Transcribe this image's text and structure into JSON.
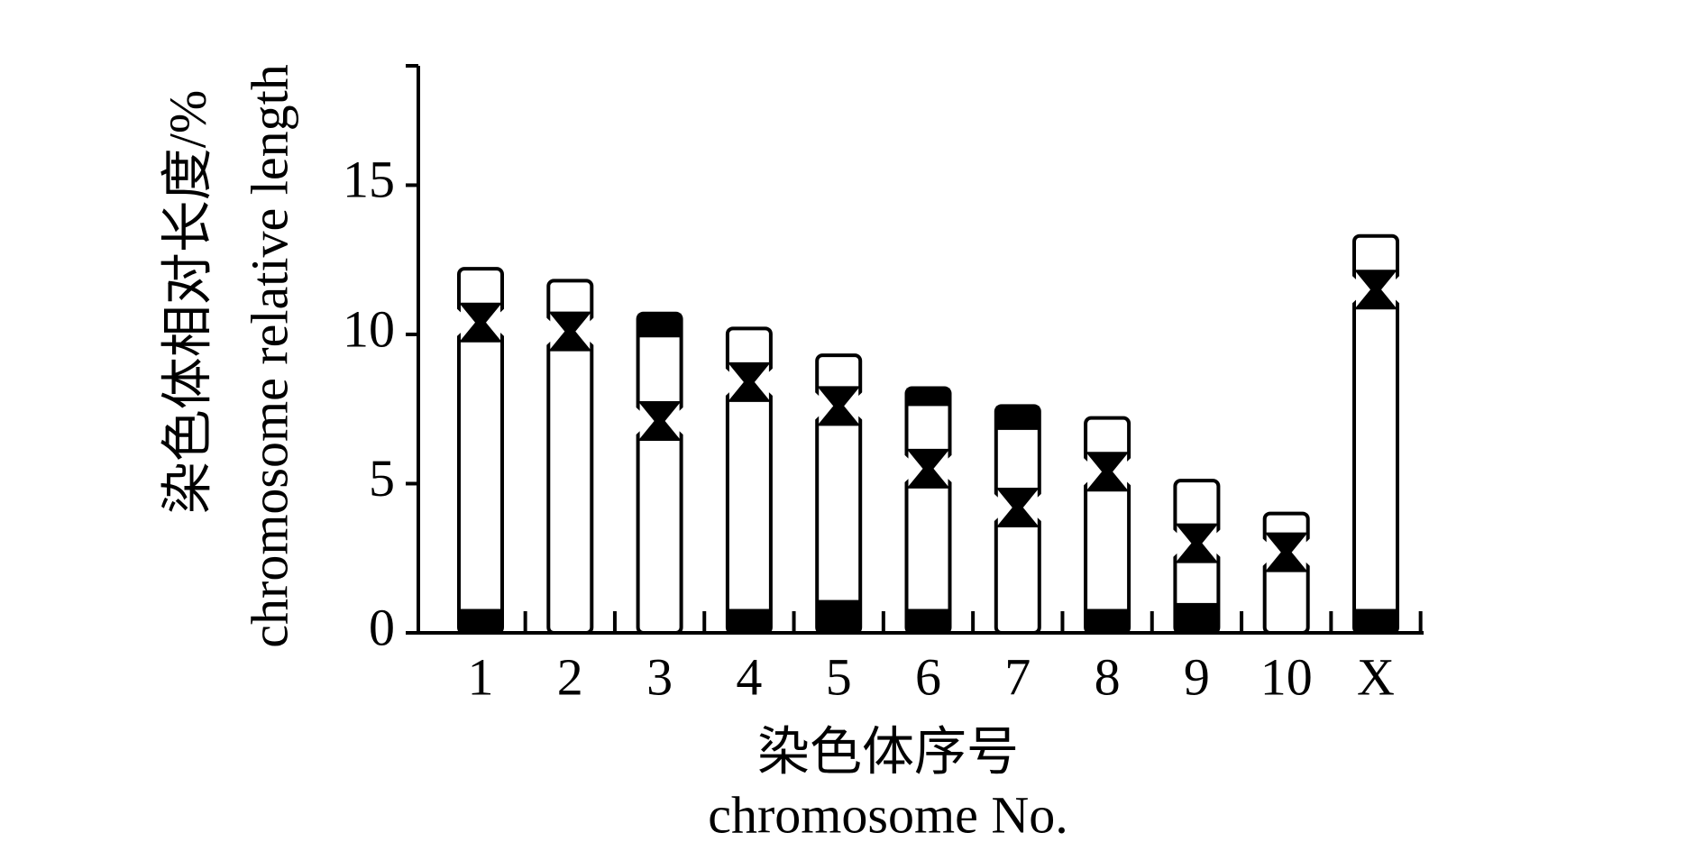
{
  "chart_data": {
    "type": "ideogram",
    "y_label": [
      "染色体相对长度/%",
      "chromosome relative length"
    ],
    "x_label": [
      "染色体序号",
      "chromosome No."
    ],
    "categories": [
      "1",
      "2",
      "3",
      "4",
      "5",
      "6",
      "7",
      "8",
      "9",
      "10",
      "X"
    ],
    "values": [
      12.2,
      11.8,
      10.7,
      10.2,
      9.3,
      8.2,
      7.6,
      7.2,
      5.1,
      4.0,
      13.3
    ],
    "centromeres": [
      10.4,
      10.1,
      7.1,
      8.4,
      7.6,
      5.5,
      4.2,
      5.4,
      3.0,
      2.7,
      11.5
    ],
    "bands": [
      [
        [
          0,
          0.8
        ]
      ],
      [],
      [
        [
          9.9,
          10.7
        ]
      ],
      [
        [
          0,
          0.8
        ]
      ],
      [
        [
          0,
          1.1
        ]
      ],
      [
        [
          0,
          0.8
        ],
        [
          7.6,
          8.2
        ]
      ],
      [
        [
          6.8,
          7.6
        ]
      ],
      [
        [
          0,
          0.8
        ]
      ],
      [
        [
          0,
          1.0
        ]
      ],
      [],
      [
        [
          0,
          0.8
        ]
      ]
    ],
    "color": "#000000",
    "ylim": [
      0,
      19
    ],
    "yticks": [
      0,
      5,
      10,
      15
    ]
  }
}
